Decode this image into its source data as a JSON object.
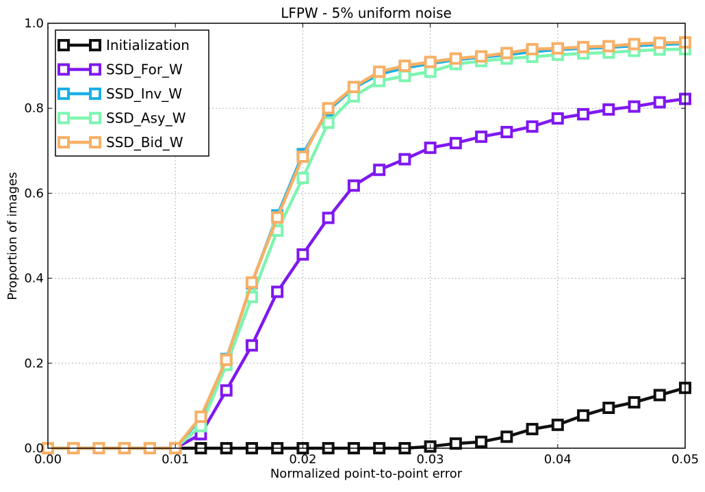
{
  "chart_data": {
    "type": "line",
    "title": "LFPW - 5% uniform noise",
    "xlabel": "Normalized point-to-point error",
    "ylabel": "Proportion of images",
    "xlim": [
      0.0,
      0.05
    ],
    "ylim": [
      0.0,
      1.0
    ],
    "grid": true,
    "legend_position": "top-left",
    "x_ticks": [
      0.0,
      0.01,
      0.02,
      0.03,
      0.04,
      0.05
    ],
    "x_tick_labels": [
      "0.00",
      "0.01",
      "0.02",
      "0.03",
      "0.04",
      "0.05"
    ],
    "y_ticks": [
      0.0,
      0.2,
      0.4,
      0.6,
      0.8,
      1.0
    ],
    "y_tick_labels": [
      "0.0",
      "0.2",
      "0.4",
      "0.6",
      "0.8",
      "1.0"
    ],
    "x": [
      0.0,
      0.002,
      0.004,
      0.006,
      0.008,
      0.01,
      0.012,
      0.014,
      0.016,
      0.018,
      0.02,
      0.022,
      0.024,
      0.026,
      0.028,
      0.03,
      0.032,
      0.034,
      0.036,
      0.038,
      0.04,
      0.042,
      0.044,
      0.046,
      0.048,
      0.05
    ],
    "series": [
      {
        "name": "Initialization",
        "color": "#111111",
        "values": [
          0.0,
          0.0,
          0.0,
          0.0,
          0.0,
          0.0,
          0.0,
          0.0,
          0.0,
          0.0,
          0.0,
          0.0,
          0.0,
          0.0,
          0.0,
          0.004,
          0.011,
          0.015,
          0.027,
          0.045,
          0.055,
          0.077,
          0.095,
          0.108,
          0.125,
          0.142
        ]
      },
      {
        "name": "SSD_For_W",
        "color": "#7f18f0",
        "values": [
          0.0,
          0.0,
          0.0,
          0.0,
          0.0,
          0.0,
          0.033,
          0.136,
          0.242,
          0.368,
          0.456,
          0.542,
          0.618,
          0.655,
          0.68,
          0.707,
          0.718,
          0.733,
          0.744,
          0.757,
          0.776,
          0.786,
          0.797,
          0.804,
          0.814,
          0.822
        ]
      },
      {
        "name": "SSD_Inv_W",
        "color": "#18b0e8",
        "values": [
          0.0,
          0.0,
          0.0,
          0.0,
          0.0,
          0.0,
          0.07,
          0.21,
          0.388,
          0.548,
          0.692,
          0.795,
          0.848,
          0.88,
          0.895,
          0.905,
          0.914,
          0.92,
          0.926,
          0.933,
          0.938,
          0.941,
          0.943,
          0.947,
          0.95,
          0.952
        ]
      },
      {
        "name": "SSD_Asy_W",
        "color": "#7df5b0",
        "values": [
          0.0,
          0.0,
          0.0,
          0.0,
          0.0,
          0.0,
          0.052,
          0.196,
          0.356,
          0.512,
          0.636,
          0.766,
          0.828,
          0.864,
          0.876,
          0.886,
          0.904,
          0.911,
          0.917,
          0.921,
          0.926,
          0.929,
          0.931,
          0.935,
          0.938,
          0.939
        ]
      },
      {
        "name": "SSD_Bid_W",
        "color": "#f7b066",
        "values": [
          0.0,
          0.0,
          0.0,
          0.0,
          0.0,
          0.0,
          0.074,
          0.208,
          0.39,
          0.543,
          0.686,
          0.8,
          0.85,
          0.886,
          0.9,
          0.909,
          0.917,
          0.922,
          0.93,
          0.939,
          0.941,
          0.944,
          0.946,
          0.951,
          0.954,
          0.955
        ]
      }
    ]
  }
}
